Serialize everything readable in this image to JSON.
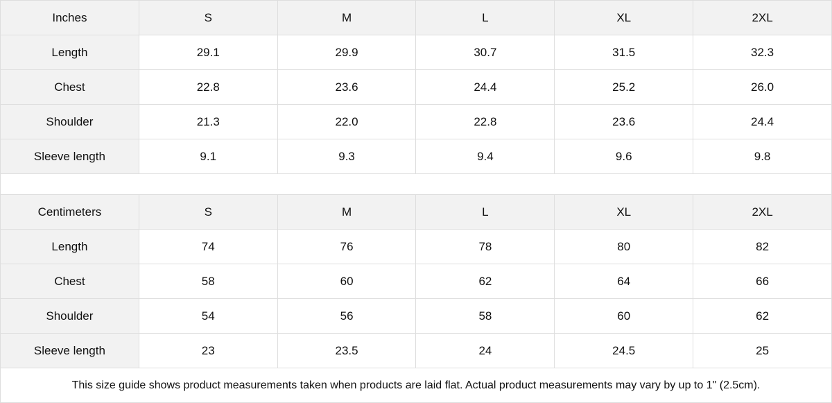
{
  "tables": [
    {
      "unit": "Inches",
      "sizes": [
        "S",
        "M",
        "L",
        "XL",
        "2XL"
      ],
      "rows": [
        {
          "label": "Length",
          "values": [
            "29.1",
            "29.9",
            "30.7",
            "31.5",
            "32.3"
          ]
        },
        {
          "label": "Chest",
          "values": [
            "22.8",
            "23.6",
            "24.4",
            "25.2",
            "26.0"
          ]
        },
        {
          "label": "Shoulder",
          "values": [
            "21.3",
            "22.0",
            "22.8",
            "23.6",
            "24.4"
          ]
        },
        {
          "label": "Sleeve length",
          "values": [
            "9.1",
            "9.3",
            "9.4",
            "9.6",
            "9.8"
          ]
        }
      ]
    },
    {
      "unit": "Centimeters",
      "sizes": [
        "S",
        "M",
        "L",
        "XL",
        "2XL"
      ],
      "rows": [
        {
          "label": "Length",
          "values": [
            "74",
            "76",
            "78",
            "80",
            "82"
          ]
        },
        {
          "label": "Chest",
          "values": [
            "58",
            "60",
            "62",
            "64",
            "66"
          ]
        },
        {
          "label": "Shoulder",
          "values": [
            "54",
            "56",
            "58",
            "60",
            "62"
          ]
        },
        {
          "label": "Sleeve length",
          "values": [
            "23",
            "23.5",
            "24",
            "24.5",
            "25"
          ]
        }
      ]
    }
  ],
  "note": "This size guide shows product measurements taken when products are laid flat.  Actual product measurements may vary by up to 1\" (2.5cm).",
  "colors": {
    "header_bg": "#f2f2f2",
    "border": "#dedede",
    "text": "#111111"
  }
}
